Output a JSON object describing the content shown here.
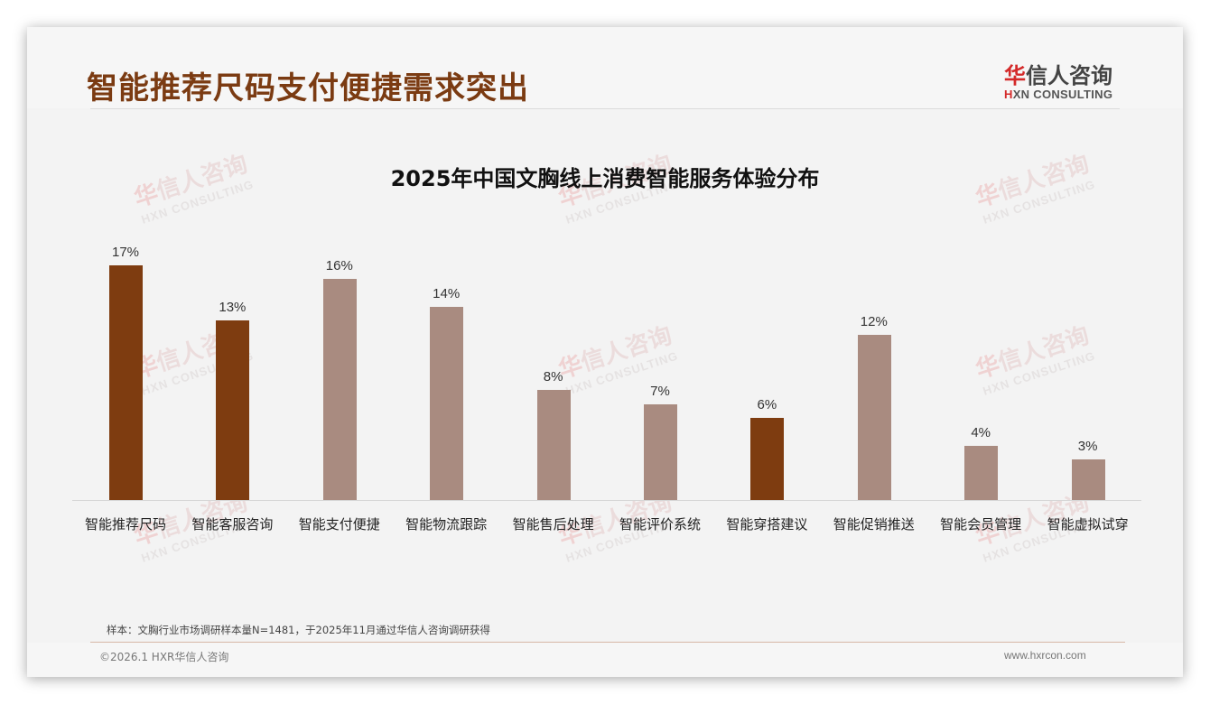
{
  "header": {
    "title": "智能推荐尺码支付便捷需求突出",
    "logo": {
      "cn_highlight": "华",
      "cn_rest": "信人咨询",
      "en_highlight": "H",
      "en_rest": "XN CONSULTING"
    }
  },
  "watermark": {
    "cn_highlight": "华",
    "cn_rest": "信人咨询",
    "en": "HXN CONSULTING"
  },
  "colors": {
    "highlight": "#7e3c10",
    "normal": "#a98b80",
    "title": "#7b3b12"
  },
  "chart_data": {
    "type": "bar",
    "title": "2025年中国文胸线上消费智能服务体验分布",
    "categories": [
      "智能推荐尺码",
      "智能客服咨询",
      "智能支付便捷",
      "智能物流跟踪",
      "智能售后处理",
      "智能评价系统",
      "智能穿搭建议",
      "智能促销推送",
      "智能会员管理",
      "智能虚拟试穿"
    ],
    "values": [
      17,
      13,
      16,
      14,
      8,
      7,
      6,
      12,
      4,
      3
    ],
    "value_labels": [
      "17%",
      "13%",
      "16%",
      "14%",
      "8%",
      "7%",
      "6%",
      "12%",
      "4%",
      "3%"
    ],
    "highlighted": [
      true,
      true,
      false,
      false,
      false,
      false,
      true,
      false,
      false,
      false
    ],
    "xlabel": "",
    "ylabel": "",
    "unit": "%",
    "ylim": [
      0,
      18
    ],
    "grid": false,
    "legend": null
  },
  "footer": {
    "note": "样本：文胸行业市场调研样本量N=1481，于2025年11月通过华信人咨询调研获得",
    "copyright": "©2026.1 HXR华信人咨询",
    "website": "www.hxrcon.com"
  }
}
